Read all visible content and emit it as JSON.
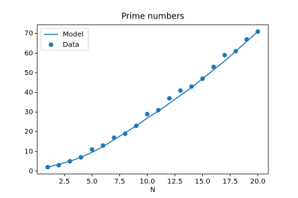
{
  "chart_data": {
    "type": "line",
    "title": "Prime numbers",
    "x_label": "N",
    "x": [
      1,
      2,
      3,
      4,
      5,
      6,
      7,
      8,
      9,
      10,
      11,
      12,
      13,
      14,
      15,
      16,
      17,
      18,
      19,
      20
    ],
    "series": [
      {
        "name": "Model",
        "style": "line",
        "color": "#1f77b4",
        "values": [
          2,
          3.5,
          5,
          7,
          9.5,
          12.5,
          16,
          19.5,
          23,
          27,
          30.5,
          34.5,
          38.5,
          42.5,
          47,
          51.5,
          56,
          61,
          66,
          71
        ]
      },
      {
        "name": "Data",
        "style": "points",
        "color": "#1f77b4",
        "values": [
          2,
          3,
          5,
          7,
          11,
          13,
          17,
          19,
          23,
          29,
          31,
          37,
          41,
          43,
          47,
          53,
          59,
          61,
          67,
          71
        ]
      }
    ],
    "xlim": [
      0.05,
      20.95
    ],
    "xticks": [
      {
        "value": 2.5,
        "label": "2.5"
      },
      {
        "value": 5,
        "label": "5.0"
      },
      {
        "value": 7.5,
        "label": "7.5"
      },
      {
        "value": 10,
        "label": "10.0"
      },
      {
        "value": 12.5,
        "label": "12.5"
      },
      {
        "value": 15,
        "label": "15.0"
      },
      {
        "value": 17.5,
        "label": "17.5"
      },
      {
        "value": 20,
        "label": "20.0"
      }
    ],
    "ylim": [
      -1.45,
      74.45
    ],
    "yticks": [
      0,
      10,
      20,
      30,
      40,
      50,
      60,
      70
    ],
    "grid": false,
    "legend": "upper-left"
  }
}
